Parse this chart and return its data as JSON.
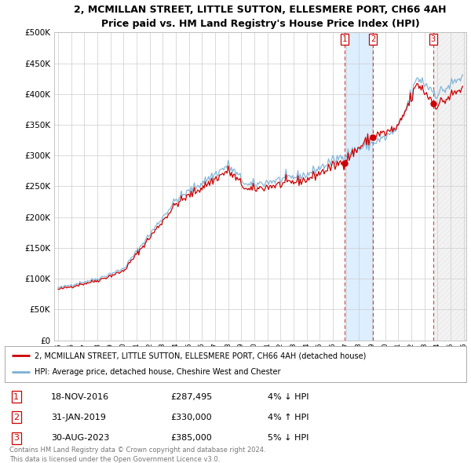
{
  "title": "2, MCMILLAN STREET, LITTLE SUTTON, ELLESMERE PORT, CH66 4AH",
  "subtitle": "Price paid vs. HM Land Registry's House Price Index (HPI)",
  "legend_line1": "2, MCMILLAN STREET, LITTLE SUTTON, ELLESMERE PORT, CH66 4AH (detached house)",
  "legend_line2": "HPI: Average price, detached house, Cheshire West and Chester",
  "footer1": "Contains HM Land Registry data © Crown copyright and database right 2024.",
  "footer2": "This data is licensed under the Open Government Licence v3.0.",
  "transactions": [
    {
      "num": 1,
      "date": "18-NOV-2016",
      "price": 287495,
      "pct": "4%",
      "dir": "↓",
      "x_year": 2016.88
    },
    {
      "num": 2,
      "date": "31-JAN-2019",
      "price": 330000,
      "pct": "4%",
      "dir": "↑",
      "x_year": 2019.08
    },
    {
      "num": 3,
      "date": "30-AUG-2023",
      "price": 385000,
      "pct": "5%",
      "dir": "↓",
      "x_year": 2023.66
    }
  ],
  "ylim": [
    0,
    500000
  ],
  "xlim_start": 1994.7,
  "xlim_end": 2026.2,
  "red_color": "#cc0000",
  "blue_color": "#7ab0d4",
  "background_color": "#ffffff",
  "grid_color": "#cccccc",
  "hatch_color": "#cccccc",
  "shade_color": "#ddeeff"
}
